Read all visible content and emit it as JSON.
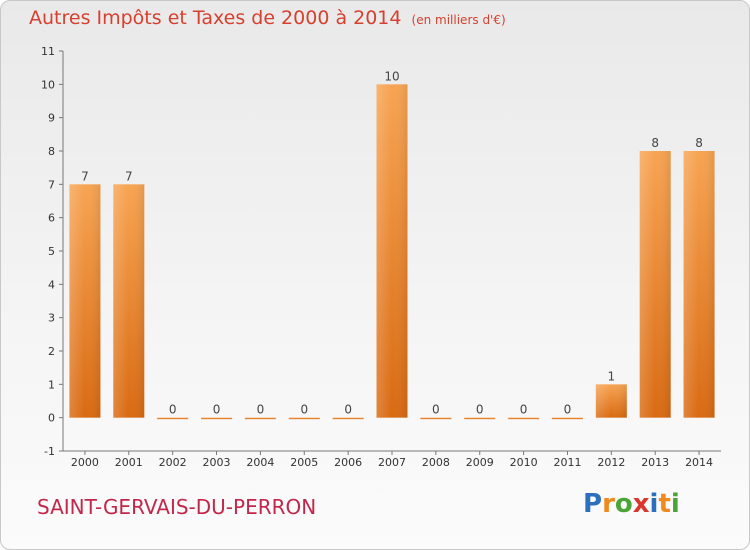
{
  "chart_data": {
    "type": "bar",
    "title": "Autres Impôts et Taxes de 2000 à 2014",
    "subtitle": "(en milliers d'€)",
    "categories": [
      "2000",
      "2001",
      "2002",
      "2003",
      "2004",
      "2005",
      "2006",
      "2007",
      "2008",
      "2009",
      "2010",
      "2011",
      "2012",
      "2013",
      "2014"
    ],
    "values": [
      7,
      7,
      0,
      0,
      0,
      0,
      0,
      10,
      0,
      0,
      0,
      0,
      1,
      8,
      8
    ],
    "y_ticks": [
      "-1",
      "0",
      "1",
      "2",
      "3",
      "4",
      "5",
      "6",
      "7",
      "8",
      "9",
      "10",
      "11"
    ],
    "ylim": [
      -1,
      11
    ],
    "grid": false,
    "colors": {
      "bar_top": "#f7a452",
      "bar_bottom": "#d96a12",
      "title": "#d7402f",
      "location": "#c2274b"
    }
  },
  "footer": {
    "location": "SAINT-GERVAIS-DU-PERRON"
  },
  "brand": {
    "letters": [
      {
        "ch": "P",
        "color": "c-blue"
      },
      {
        "ch": "r",
        "color": "c-orange"
      },
      {
        "ch": "o",
        "color": "c-green"
      },
      {
        "ch": "x",
        "color": "c-red"
      },
      {
        "ch": "i",
        "color": "c-blue"
      },
      {
        "ch": "t",
        "color": "c-orange"
      },
      {
        "ch": "i",
        "color": "c-green"
      }
    ]
  }
}
